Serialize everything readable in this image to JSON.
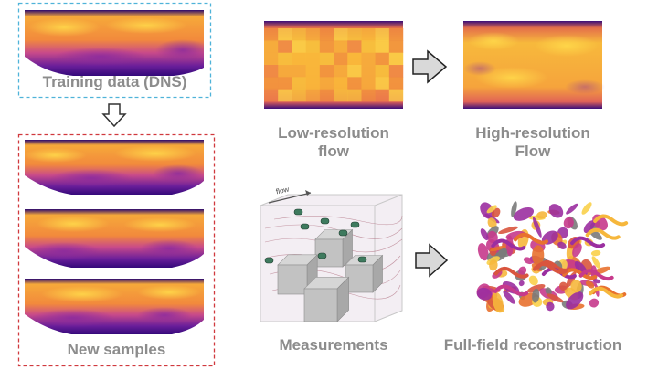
{
  "left": {
    "training_label": "Training data (DNS)",
    "new_samples_label": "New samples",
    "training_border_color": "#4fb3d9",
    "samples_border_color": "#d0393e"
  },
  "right_top": {
    "lowres_label_line1": "Low-resolution",
    "lowres_label_line2": "flow",
    "highres_label_line1": "High-resolution",
    "highres_label_line2": "Flow"
  },
  "right_bottom": {
    "measurements_label": "Measurements",
    "reconstruction_label": "Full-field reconstruction",
    "flow_arrow_label": "flow"
  },
  "icons": {
    "down_arrow": "hollow-down-arrow-icon",
    "right_arrow": "hollow-right-arrow-icon"
  },
  "colors": {
    "flow_dark": "#3d0b78",
    "flow_mid": "#c03a8d",
    "flow_bright": "#f9c33a",
    "arrow_fill": "#d9d9d9",
    "label_gray": "#8c8c8c"
  }
}
